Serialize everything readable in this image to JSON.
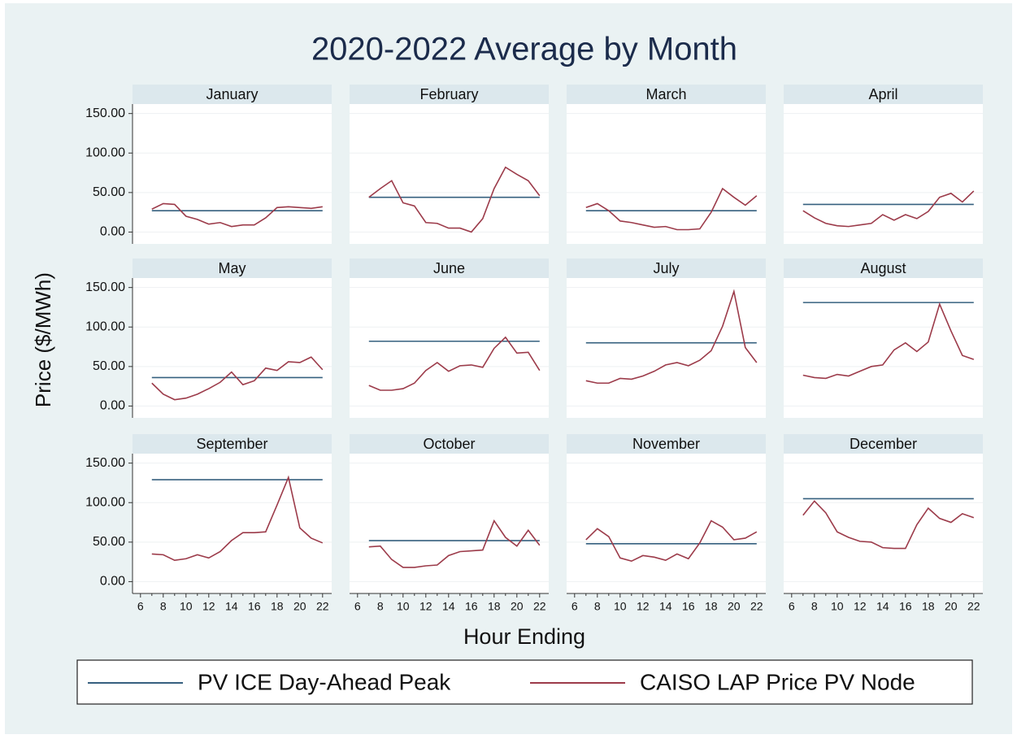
{
  "chart_data": {
    "type": "line",
    "title": "2020-2022 Average by Month",
    "xlabel": "Hour Ending",
    "ylabel": "Price ($/MWh)",
    "x": [
      7,
      8,
      9,
      10,
      11,
      12,
      13,
      14,
      15,
      16,
      17,
      18,
      19,
      20,
      21,
      22
    ],
    "xlim": [
      5.3,
      22.8
    ],
    "xticks": [
      6,
      8,
      10,
      12,
      14,
      16,
      18,
      20,
      22
    ],
    "ylim": [
      -15,
      162
    ],
    "yticks": [
      {
        "value": 0,
        "label": "0.00"
      },
      {
        "value": 50,
        "label": "50.00"
      },
      {
        "value": 100,
        "label": "100.00"
      },
      {
        "value": 150,
        "label": "150.00"
      }
    ],
    "grid": true,
    "legend": "bottom",
    "series": [
      {
        "name": "PV ICE Day-Ahead Peak",
        "color": "#36607f"
      },
      {
        "name": "CAISO LAP Price PV Node",
        "color": "#9c3b4a"
      }
    ],
    "panels": [
      {
        "title": "January",
        "series": [
          {
            "values": [
              27,
              27,
              27,
              27,
              27,
              27,
              27,
              27,
              27,
              27,
              27,
              27,
              27,
              27,
              27,
              27
            ]
          },
          {
            "values": [
              29,
              36,
              35,
              20,
              16,
              10,
              12,
              7,
              9,
              9,
              18,
              31,
              32,
              31,
              30,
              32
            ]
          }
        ]
      },
      {
        "title": "February",
        "series": [
          {
            "values": [
              44,
              44,
              44,
              44,
              44,
              44,
              44,
              44,
              44,
              44,
              44,
              44,
              44,
              44,
              44,
              44
            ]
          },
          {
            "values": [
              44,
              55,
              65,
              37,
              33,
              12,
              11,
              5,
              5,
              0,
              17,
              55,
              82,
              73,
              65,
              46
            ]
          }
        ]
      },
      {
        "title": "March",
        "series": [
          {
            "values": [
              27,
              27,
              27,
              27,
              27,
              27,
              27,
              27,
              27,
              27,
              27,
              27,
              27,
              27,
              27,
              27
            ]
          },
          {
            "values": [
              31,
              36,
              27,
              14,
              12,
              9,
              6,
              7,
              3,
              3,
              4,
              25,
              55,
              44,
              34,
              46
            ]
          }
        ]
      },
      {
        "title": "April",
        "series": [
          {
            "values": [
              35,
              35,
              35,
              35,
              35,
              35,
              35,
              35,
              35,
              35,
              35,
              35,
              35,
              35,
              35,
              35
            ]
          },
          {
            "values": [
              27,
              18,
              11,
              8,
              7,
              9,
              11,
              22,
              15,
              22,
              17,
              26,
              44,
              49,
              38,
              52
            ]
          }
        ]
      },
      {
        "title": "May",
        "series": [
          {
            "values": [
              36,
              36,
              36,
              36,
              36,
              36,
              36,
              36,
              36,
              36,
              36,
              36,
              36,
              36,
              36,
              36
            ]
          },
          {
            "values": [
              29,
              15,
              8,
              10,
              15,
              22,
              30,
              43,
              27,
              32,
              48,
              45,
              56,
              55,
              62,
              46
            ]
          }
        ]
      },
      {
        "title": "June",
        "series": [
          {
            "values": [
              82,
              82,
              82,
              82,
              82,
              82,
              82,
              82,
              82,
              82,
              82,
              82,
              82,
              82,
              82,
              82
            ]
          },
          {
            "values": [
              26,
              20,
              20,
              22,
              29,
              45,
              55,
              44,
              51,
              52,
              49,
              73,
              87,
              67,
              68,
              45
            ]
          }
        ]
      },
      {
        "title": "July",
        "series": [
          {
            "values": [
              80,
              80,
              80,
              80,
              80,
              80,
              80,
              80,
              80,
              80,
              80,
              80,
              80,
              80,
              80,
              80
            ]
          },
          {
            "values": [
              32,
              29,
              29,
              35,
              34,
              38,
              44,
              52,
              55,
              51,
              58,
              70,
              101,
              145,
              74,
              55
            ]
          }
        ]
      },
      {
        "title": "August",
        "series": [
          {
            "values": [
              131,
              131,
              131,
              131,
              131,
              131,
              131,
              131,
              131,
              131,
              131,
              131,
              131,
              131,
              131,
              131
            ]
          },
          {
            "values": [
              39,
              36,
              35,
              40,
              38,
              44,
              50,
              52,
              71,
              80,
              69,
              81,
              129,
              95,
              64,
              59
            ]
          }
        ]
      },
      {
        "title": "September",
        "series": [
          {
            "values": [
              129,
              129,
              129,
              129,
              129,
              129,
              129,
              129,
              129,
              129,
              129,
              129,
              129,
              129,
              129,
              129
            ]
          },
          {
            "values": [
              35,
              34,
              27,
              29,
              34,
              30,
              38,
              52,
              62,
              62,
              63,
              97,
              132,
              68,
              55,
              49
            ]
          }
        ]
      },
      {
        "title": "October",
        "series": [
          {
            "values": [
              52,
              52,
              52,
              52,
              52,
              52,
              52,
              52,
              52,
              52,
              52,
              52,
              52,
              52,
              52,
              52
            ]
          },
          {
            "values": [
              44,
              45,
              28,
              18,
              18,
              20,
              21,
              33,
              38,
              39,
              40,
              77,
              56,
              45,
              65,
              46
            ]
          }
        ]
      },
      {
        "title": "November",
        "series": [
          {
            "values": [
              48,
              48,
              48,
              48,
              48,
              48,
              48,
              48,
              48,
              48,
              48,
              48,
              48,
              48,
              48,
              48
            ]
          },
          {
            "values": [
              53,
              67,
              57,
              30,
              26,
              33,
              31,
              27,
              35,
              29,
              49,
              77,
              69,
              53,
              55,
              63
            ]
          }
        ]
      },
      {
        "title": "December",
        "series": [
          {
            "values": [
              105,
              105,
              105,
              105,
              105,
              105,
              105,
              105,
              105,
              105,
              105,
              105,
              105,
              105,
              105,
              105
            ]
          },
          {
            "values": [
              84,
              102,
              87,
              63,
              56,
              51,
              50,
              43,
              42,
              42,
              72,
              93,
              80,
              75,
              86,
              81
            ]
          }
        ]
      }
    ]
  }
}
